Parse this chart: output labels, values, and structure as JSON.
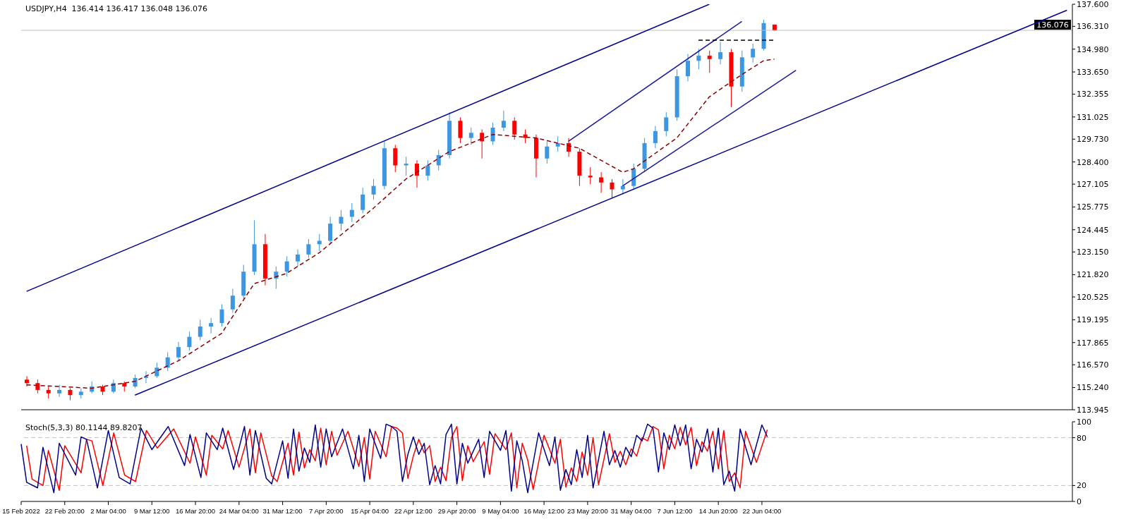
{
  "chart_data": [
    {
      "type": "candlestick",
      "title": "USDJPY,H4  136.414 136.417 136.048 136.076",
      "categories": [
        null,
        null,
        null,
        null,
        null,
        null,
        null,
        null,
        null,
        null,
        null,
        null,
        null,
        null,
        null,
        null,
        null,
        null,
        null,
        null,
        null,
        null,
        null,
        null,
        null,
        null,
        null,
        null,
        null,
        null,
        null,
        null,
        null,
        null,
        null,
        null,
        null,
        null,
        null,
        null,
        null,
        null,
        null,
        null,
        null,
        null,
        null,
        null,
        null,
        null,
        null,
        null,
        null,
        null,
        null,
        null,
        null,
        null,
        null,
        null,
        null,
        null,
        null,
        null,
        null,
        null,
        null,
        null,
        null,
        null,
        null,
        null,
        null,
        null,
        null,
        null,
        null,
        null,
        null,
        null,
        null,
        null,
        null,
        null,
        null,
        null,
        null,
        null,
        null,
        null,
        null,
        null,
        null,
        null,
        null,
        null,
        null
      ],
      "ohlc": [
        [
          115.7,
          115.9,
          115.3,
          115.5
        ],
        [
          115.5,
          115.7,
          114.9,
          115.1
        ],
        [
          115.1,
          115.3,
          114.6,
          114.9
        ],
        [
          114.9,
          115.4,
          114.7,
          115.1
        ],
        [
          115.1,
          115.2,
          114.5,
          114.8
        ],
        [
          114.8,
          115.2,
          114.6,
          115.0
        ],
        [
          115.0,
          115.6,
          114.9,
          115.3
        ],
        [
          115.3,
          115.4,
          114.8,
          115.0
        ],
        [
          115.0,
          115.7,
          114.9,
          115.5
        ],
        [
          115.5,
          115.6,
          115.0,
          115.3
        ],
        [
          115.3,
          116.0,
          115.2,
          115.8
        ],
        [
          115.8,
          116.2,
          115.5,
          115.9
        ],
        [
          115.9,
          116.7,
          115.8,
          116.4
        ],
        [
          116.4,
          117.3,
          116.2,
          117.0
        ],
        [
          117.0,
          117.9,
          116.8,
          117.6
        ],
        [
          117.6,
          118.5,
          117.4,
          118.2
        ],
        [
          118.2,
          119.2,
          118.0,
          118.8
        ],
        [
          118.8,
          119.3,
          118.4,
          119.0
        ],
        [
          119.0,
          120.1,
          118.8,
          119.8
        ],
        [
          119.8,
          121.0,
          119.6,
          120.6
        ],
        [
          120.6,
          122.4,
          120.4,
          122.0
        ],
        [
          122.0,
          125.0,
          121.8,
          123.6
        ],
        [
          123.6,
          124.2,
          121.2,
          121.6
        ],
        [
          121.6,
          122.3,
          121.0,
          122.0
        ],
        [
          122.0,
          122.9,
          121.7,
          122.6
        ],
        [
          122.6,
          123.3,
          122.3,
          123.0
        ],
        [
          123.0,
          123.9,
          122.8,
          123.6
        ],
        [
          123.6,
          124.2,
          123.2,
          123.8
        ],
        [
          123.8,
          125.2,
          123.6,
          124.8
        ],
        [
          124.8,
          125.6,
          124.4,
          125.2
        ],
        [
          125.2,
          126.0,
          124.9,
          125.6
        ],
        [
          125.6,
          126.9,
          125.4,
          126.5
        ],
        [
          126.5,
          127.4,
          126.2,
          127.0
        ],
        [
          127.0,
          129.6,
          126.8,
          129.2
        ],
        [
          129.2,
          129.4,
          127.8,
          128.2
        ],
        [
          128.2,
          128.7,
          127.6,
          128.3
        ],
        [
          128.3,
          128.5,
          126.9,
          127.6
        ],
        [
          127.6,
          128.5,
          127.3,
          128.2
        ],
        [
          128.2,
          129.1,
          127.9,
          128.8
        ],
        [
          128.8,
          131.3,
          128.6,
          130.8
        ],
        [
          130.8,
          131.0,
          129.5,
          129.8
        ],
        [
          129.8,
          130.4,
          129.4,
          130.1
        ],
        [
          130.1,
          130.3,
          128.6,
          129.6
        ],
        [
          129.6,
          130.7,
          129.4,
          130.4
        ],
        [
          130.4,
          131.4,
          130.2,
          130.8
        ],
        [
          130.8,
          131.0,
          129.7,
          130.0
        ],
        [
          130.0,
          130.3,
          129.5,
          129.8
        ],
        [
          129.8,
          130.0,
          127.5,
          128.6
        ],
        [
          128.6,
          129.6,
          128.3,
          129.3
        ],
        [
          129.3,
          129.9,
          129.0,
          129.5
        ],
        [
          129.5,
          129.8,
          128.7,
          129.0
        ],
        [
          129.0,
          129.2,
          127.0,
          127.6
        ],
        [
          127.6,
          128.1,
          127.1,
          127.5
        ],
        [
          127.5,
          127.8,
          126.6,
          127.2
        ],
        [
          127.2,
          127.4,
          126.3,
          126.8
        ],
        [
          126.8,
          127.4,
          126.5,
          127.0
        ],
        [
          127.0,
          128.3,
          126.8,
          128.0
        ],
        [
          128.0,
          129.8,
          127.8,
          129.5
        ],
        [
          129.5,
          130.5,
          129.2,
          130.2
        ],
        [
          130.2,
          131.3,
          129.9,
          131.0
        ],
        [
          131.0,
          133.8,
          130.8,
          133.4
        ],
        [
          133.4,
          134.7,
          133.1,
          134.3
        ],
        [
          134.3,
          135.0,
          133.8,
          134.6
        ],
        [
          134.6,
          134.9,
          133.6,
          134.4
        ],
        [
          134.4,
          135.4,
          134.1,
          134.8
        ],
        [
          134.8,
          135.0,
          131.6,
          132.8
        ],
        [
          132.8,
          134.9,
          132.5,
          134.5
        ],
        [
          134.5,
          135.3,
          134.2,
          135.0
        ],
        [
          135.0,
          136.7,
          134.9,
          136.5
        ],
        [
          136.414,
          136.417,
          136.048,
          136.076
        ],
        null,
        null,
        null,
        null,
        null,
        null,
        null,
        null,
        null,
        null,
        null,
        null,
        null,
        null,
        null,
        null,
        null,
        null,
        null,
        null,
        null,
        null,
        null,
        null,
        null,
        null,
        null
      ],
      "colors": [
        "#ff0000",
        "#ff0000",
        "#ff0000",
        "#3c96e0",
        "#ff0000",
        "#3c96e0",
        "#3c96e0",
        "#ff0000",
        "#3c96e0",
        "#ff0000",
        "#3c96e0",
        "#3c96e0",
        "#3c96e0",
        "#3c96e0",
        "#3c96e0",
        "#3c96e0",
        "#3c96e0",
        "#3c96e0",
        "#3c96e0",
        "#3c96e0",
        "#3c96e0",
        "#3c96e0",
        "#ff0000",
        "#3c96e0",
        "#3c96e0",
        "#3c96e0",
        "#3c96e0",
        "#3c96e0",
        "#3c96e0",
        "#3c96e0",
        "#3c96e0",
        "#3c96e0",
        "#3c96e0",
        "#3c96e0",
        "#ff0000",
        "#3c96e0",
        "#ff0000",
        "#3c96e0",
        "#3c96e0",
        "#3c96e0",
        "#ff0000",
        "#3c96e0",
        "#ff0000",
        "#3c96e0",
        "#3c96e0",
        "#ff0000",
        "#ff0000",
        "#ff0000",
        "#3c96e0",
        "#3c96e0",
        "#ff0000",
        "#ff0000",
        "#ff0000",
        "#ff0000",
        "#ff0000",
        "#3c96e0",
        "#3c96e0",
        "#3c96e0",
        "#3c96e0",
        "#3c96e0",
        "#3c96e0",
        "#3c96e0",
        "#3c96e0",
        "#ff0000",
        "#3c96e0",
        "#ff0000",
        "#3c96e0",
        "#3c96e0",
        "#3c96e0",
        "#ff0000",
        null,
        null,
        null,
        null,
        null,
        null,
        null,
        null,
        null,
        null,
        null,
        null,
        null,
        null,
        null,
        null,
        null,
        null,
        null,
        null,
        null,
        null,
        null,
        null,
        null,
        null,
        null
      ],
      "series": [
        {
          "type": "line",
          "color": "#00008b",
          "line_style": "solid",
          "values": [
            120.85,
            null,
            null,
            null,
            null,
            null,
            null,
            null,
            null,
            null,
            null,
            null,
            null,
            null,
            null,
            null,
            null,
            null,
            null,
            null,
            null,
            null,
            null,
            null,
            null,
            null,
            null,
            null,
            null,
            null,
            null,
            null,
            null,
            null,
            null,
            null,
            null,
            null,
            null,
            null,
            null,
            null,
            null,
            null,
            null,
            null,
            null,
            null,
            null,
            null,
            null,
            null,
            null,
            null,
            null,
            null,
            null,
            null,
            null,
            null,
            null,
            null,
            null,
            137.6,
            null,
            null,
            null,
            null,
            null,
            null,
            null,
            null,
            null,
            null,
            null,
            null,
            null,
            null,
            null,
            null,
            null,
            null,
            null,
            null,
            null,
            null,
            null,
            null,
            null,
            null,
            null,
            null,
            null,
            null,
            null,
            null,
            null
          ]
        },
        {
          "type": "line",
          "color": "#00008b",
          "line_style": "solid",
          "values": [
            null,
            null,
            null,
            null,
            null,
            null,
            null,
            null,
            null,
            null,
            114.8,
            null,
            null,
            null,
            null,
            null,
            null,
            null,
            null,
            null,
            null,
            null,
            null,
            null,
            null,
            null,
            null,
            null,
            null,
            null,
            null,
            null,
            null,
            null,
            null,
            null,
            null,
            null,
            null,
            null,
            null,
            null,
            null,
            null,
            null,
            null,
            null,
            null,
            null,
            null,
            null,
            null,
            null,
            null,
            null,
            null,
            null,
            null,
            null,
            null,
            null,
            null,
            null,
            null,
            null,
            null,
            null,
            null,
            null,
            null,
            null,
            null,
            null,
            null,
            null,
            null,
            null,
            null,
            null,
            null,
            null,
            null,
            null,
            null,
            null,
            null,
            null,
            null,
            null,
            null,
            null,
            null,
            null,
            null,
            null,
            null,
            137.25
          ]
        },
        {
          "type": "line",
          "color": "#1a1a9c",
          "line_style": "solid",
          "values": [
            null,
            null,
            null,
            null,
            null,
            null,
            null,
            null,
            null,
            null,
            null,
            null,
            null,
            null,
            null,
            null,
            null,
            null,
            null,
            null,
            null,
            null,
            null,
            null,
            null,
            null,
            null,
            null,
            null,
            null,
            null,
            null,
            null,
            null,
            null,
            null,
            null,
            null,
            null,
            null,
            null,
            null,
            null,
            null,
            null,
            null,
            null,
            null,
            null,
            null,
            129.6,
            null,
            null,
            null,
            null,
            null,
            null,
            null,
            null,
            null,
            null,
            null,
            null,
            null,
            null,
            null,
            136.6,
            null,
            null,
            null,
            null,
            null,
            null,
            null,
            null,
            null,
            null,
            null,
            null,
            null,
            null,
            null,
            null,
            null,
            null,
            null,
            null,
            null,
            null,
            null,
            null,
            null,
            null,
            null,
            null,
            null,
            null
          ]
        },
        {
          "type": "line",
          "color": "#1a1a9c",
          "line_style": "solid",
          "values": [
            null,
            null,
            null,
            null,
            null,
            null,
            null,
            null,
            null,
            null,
            null,
            null,
            null,
            null,
            null,
            null,
            null,
            null,
            null,
            null,
            null,
            null,
            null,
            null,
            null,
            null,
            null,
            null,
            null,
            null,
            null,
            null,
            null,
            null,
            null,
            null,
            null,
            null,
            null,
            null,
            null,
            null,
            null,
            null,
            null,
            null,
            null,
            null,
            null,
            null,
            null,
            null,
            null,
            null,
            null,
            127.0,
            null,
            null,
            null,
            null,
            null,
            null,
            null,
            null,
            null,
            null,
            null,
            null,
            null,
            null,
            null,
            133.75,
            null,
            null,
            null,
            null,
            null,
            null,
            null,
            null,
            null,
            null,
            null,
            null,
            null,
            null,
            null,
            null,
            null,
            null,
            null,
            null,
            null,
            null,
            null,
            null,
            null
          ]
        },
        {
          "type": "line",
          "color": "#000000",
          "line_style": "dashed",
          "values": [
            null,
            null,
            null,
            null,
            null,
            null,
            null,
            null,
            null,
            null,
            null,
            null,
            null,
            null,
            null,
            null,
            null,
            null,
            null,
            null,
            null,
            null,
            null,
            null,
            null,
            null,
            null,
            null,
            null,
            null,
            null,
            null,
            null,
            null,
            null,
            null,
            null,
            null,
            null,
            null,
            null,
            null,
            null,
            null,
            null,
            null,
            null,
            null,
            null,
            null,
            null,
            null,
            null,
            null,
            null,
            null,
            null,
            null,
            null,
            null,
            null,
            null,
            135.5,
            null,
            null,
            null,
            null,
            null,
            null,
            135.5,
            null,
            null,
            null,
            null,
            null,
            null,
            null,
            null,
            null,
            null,
            null,
            null,
            null,
            null,
            null,
            null,
            null,
            null,
            null,
            null,
            null,
            null,
            null,
            null,
            null,
            null,
            null
          ]
        },
        {
          "type": "line",
          "color": "#8b0000",
          "line_style": "dashed",
          "values": [
            115.4,
            null,
            null,
            null,
            null,
            null,
            115.2,
            null,
            null,
            null,
            115.6,
            null,
            null,
            null,
            116.8,
            null,
            null,
            null,
            118.4,
            null,
            null,
            121.3,
            null,
            null,
            121.9,
            null,
            null,
            123.1,
            null,
            null,
            null,
            null,
            125.7,
            null,
            null,
            127.4,
            null,
            null,
            null,
            129.0,
            null,
            null,
            null,
            130.0,
            null,
            null,
            null,
            129.8,
            null,
            null,
            null,
            129.2,
            null,
            null,
            null,
            127.8,
            128.0,
            null,
            null,
            null,
            129.8,
            null,
            null,
            132.2,
            null,
            null,
            133.5,
            null,
            134.3,
            134.4,
            null,
            null,
            null,
            null,
            null,
            null,
            null,
            null,
            null,
            null,
            null,
            null,
            null,
            null,
            null,
            null,
            null,
            null,
            null,
            null,
            null,
            null,
            null,
            null,
            null,
            null,
            null
          ]
        }
      ],
      "ylim": [
        113.945,
        137.6
      ],
      "yticks": [
        113.945,
        {
          "value": 115.24,
          "label": "115.240"
        },
        {
          "value": 116.57,
          "label": "116.570"
        },
        117.865,
        119.195,
        120.525,
        {
          "value": 121.82,
          "label": "121.820"
        },
        {
          "value": 123.15,
          "label": "123.150"
        },
        124.445,
        125.775,
        127.105,
        {
          "value": 128.4,
          "label": "128.400"
        },
        {
          "value": 129.73,
          "label": "129.730"
        },
        131.025,
        132.355,
        {
          "value": 133.65,
          "label": "133.650"
        },
        {
          "value": 134.98,
          "label": "134.980"
        },
        {
          "value": 136.31,
          "label": "136.310"
        },
        {
          "value": 137.6,
          "label": "137.600"
        }
      ],
      "tick_labels": "y",
      "ref_lines": [
        {
          "axis": "y",
          "value": 136.076,
          "label": "136.076",
          "color": "#c0c0c0",
          "line_style": "solid"
        }
      ],
      "grid": false,
      "legend": false
    },
    {
      "type": "line",
      "title": "Stoch(5,3,3) 80.1144 89.8207",
      "categories": [
        "15 Feb 2022",
        null,
        null,
        null,
        null,
        null,
        null,
        null,
        "22 Feb 20:00",
        null,
        null,
        null,
        null,
        null,
        null,
        null,
        "2 Mar 04:00",
        null,
        null,
        null,
        null,
        null,
        null,
        null,
        "9 Mar 12:00",
        null,
        null,
        null,
        null,
        null,
        null,
        null,
        "16 Mar 20:00",
        null,
        null,
        null,
        null,
        null,
        null,
        null,
        "24 Mar 04:00",
        null,
        null,
        null,
        null,
        null,
        null,
        null,
        "31 Mar 12:00",
        null,
        null,
        null,
        null,
        null,
        null,
        null,
        "7 Apr 20:00",
        null,
        null,
        null,
        null,
        null,
        null,
        null,
        "15 Apr 04:00",
        null,
        null,
        null,
        null,
        null,
        null,
        null,
        "22 Apr 12:00",
        null,
        null,
        null,
        null,
        null,
        null,
        null,
        "29 Apr 20:00",
        null,
        null,
        null,
        null,
        null,
        null,
        null,
        "9 May 04:00",
        null,
        null,
        null,
        null,
        null,
        null,
        null,
        "16 May 12:00",
        null,
        null,
        null,
        null,
        null,
        null,
        null,
        "23 May 20:00",
        null,
        null,
        null,
        null,
        null,
        null,
        null,
        "31 May 04:00",
        null,
        null,
        null,
        null,
        null,
        null,
        null,
        "7 Jun 12:00",
        null,
        null,
        null,
        null,
        null,
        null,
        null,
        "14 Jun 20:00",
        null,
        null,
        null,
        null,
        null,
        null,
        null,
        "22 Jun 04:00",
        null,
        null,
        null,
        null,
        null,
        null,
        null,
        null,
        null,
        null,
        null,
        null,
        null,
        null,
        null,
        null,
        null,
        null,
        null,
        null,
        null,
        null,
        null,
        null,
        null,
        null,
        null,
        null,
        null,
        null,
        null,
        null,
        null,
        null,
        null,
        null,
        null,
        null,
        null,
        null,
        null,
        null,
        null,
        null,
        null,
        null,
        null,
        null,
        null,
        null,
        null,
        null,
        null,
        null,
        null,
        null,
        null
      ],
      "series": [
        {
          "color": "#ff0000",
          "values": [
            null,
            70,
            28,
            null,
            20,
            64,
            null,
            14,
            70,
            null,
            null,
            36,
            78,
            76,
            null,
            20,
            null,
            86,
            null,
            33,
            null,
            25,
            null,
            89,
            null,
            67,
            null,
            null,
            91,
            null,
            null,
            48,
            81,
            null,
            33,
            83,
            null,
            66,
            89,
            null,
            43,
            null,
            91,
            36,
            86,
            null,
            32,
            25,
            null,
            73,
            33,
            87,
            42,
            65,
            51,
            92,
            46,
            88,
            58,
            null,
            88,
            null,
            44,
            80,
            28,
            88,
            null,
            56,
            94,
            92,
            86,
            29,
            57,
            78,
            61,
            70,
            25,
            43,
            26,
            80,
            94,
            26,
            70,
            50,
            null,
            75,
            34,
            85,
            null,
            65,
            86,
            17,
            73,
            52,
            15,
            null,
            83,
            null,
            48,
            78,
            18,
            42,
            25,
            62,
            33,
            80,
            21,
            null,
            85,
            49,
            63,
            46,
            66,
            57,
            80,
            76,
            94,
            90,
            41,
            83,
            66,
            93,
            71,
            93,
            45,
            75,
            63,
            88,
            41,
            89,
            25,
            36,
            17,
            88,
            null,
            49,
            null,
            90,
            null,
            null,
            null,
            null,
            null,
            null,
            null,
            null,
            null,
            null,
            null,
            null,
            null,
            null,
            null,
            null,
            null,
            null,
            null,
            null,
            null,
            null,
            null,
            null,
            null,
            null,
            null,
            null,
            null,
            null,
            null,
            null,
            null,
            null,
            null,
            null,
            null,
            null,
            null,
            null,
            null,
            null,
            null,
            null,
            null,
            null,
            null,
            null,
            null,
            null,
            null,
            null,
            null,
            null,
            null,
            null
          ]
        },
        {
          "color": "#00008b",
          "values": [
            72,
            24,
            null,
            17,
            68,
            null,
            11,
            73,
            null,
            null,
            33,
            81,
            78,
            null,
            17,
            null,
            89,
            null,
            30,
            null,
            22,
            null,
            92,
            null,
            65,
            null,
            null,
            94,
            null,
            null,
            45,
            84,
            null,
            30,
            86,
            null,
            65,
            92,
            null,
            40,
            null,
            94,
            33,
            89,
            null,
            29,
            22,
            null,
            76,
            29,
            91,
            38,
            67,
            49,
            96,
            43,
            91,
            56,
            null,
            91,
            null,
            41,
            83,
            25,
            91,
            null,
            54,
            97,
            94,
            88,
            25,
            59,
            81,
            59,
            73,
            21,
            45,
            22,
            84,
            97,
            22,
            73,
            48,
            null,
            78,
            30,
            88,
            null,
            64,
            89,
            13,
            76,
            51,
            11,
            null,
            86,
            null,
            45,
            81,
            14,
            40,
            21,
            65,
            30,
            83,
            17,
            null,
            88,
            46,
            64,
            43,
            68,
            56,
            83,
            76,
            97,
            92,
            37,
            86,
            65,
            96,
            70,
            96,
            41,
            78,
            62,
            91,
            37,
            92,
            21,
            38,
            13,
            91,
            null,
            46,
            null,
            96,
            81,
            null,
            null,
            null,
            null,
            null,
            null,
            null,
            null,
            null,
            null,
            null,
            null,
            null,
            null,
            null,
            null,
            null,
            null,
            null,
            null,
            null,
            null,
            null,
            null,
            null,
            null,
            null,
            null,
            null,
            null,
            null,
            null,
            null,
            null,
            null,
            null,
            null,
            null,
            null,
            null,
            null,
            null,
            null,
            null,
            null,
            null,
            null,
            null,
            null,
            null,
            null,
            null,
            null,
            null,
            null,
            null
          ]
        }
      ],
      "ylim": [
        0,
        100
      ],
      "yticks": [
        0,
        20,
        80,
        100
      ],
      "ref_lines": [
        {
          "axis": "y",
          "value": 20,
          "color": "#c0c0c0",
          "line_style": "dashed"
        },
        {
          "axis": "y",
          "value": 80,
          "color": "#c0c0c0",
          "line_style": "dashed"
        }
      ],
      "grid": false,
      "legend": false
    }
  ]
}
